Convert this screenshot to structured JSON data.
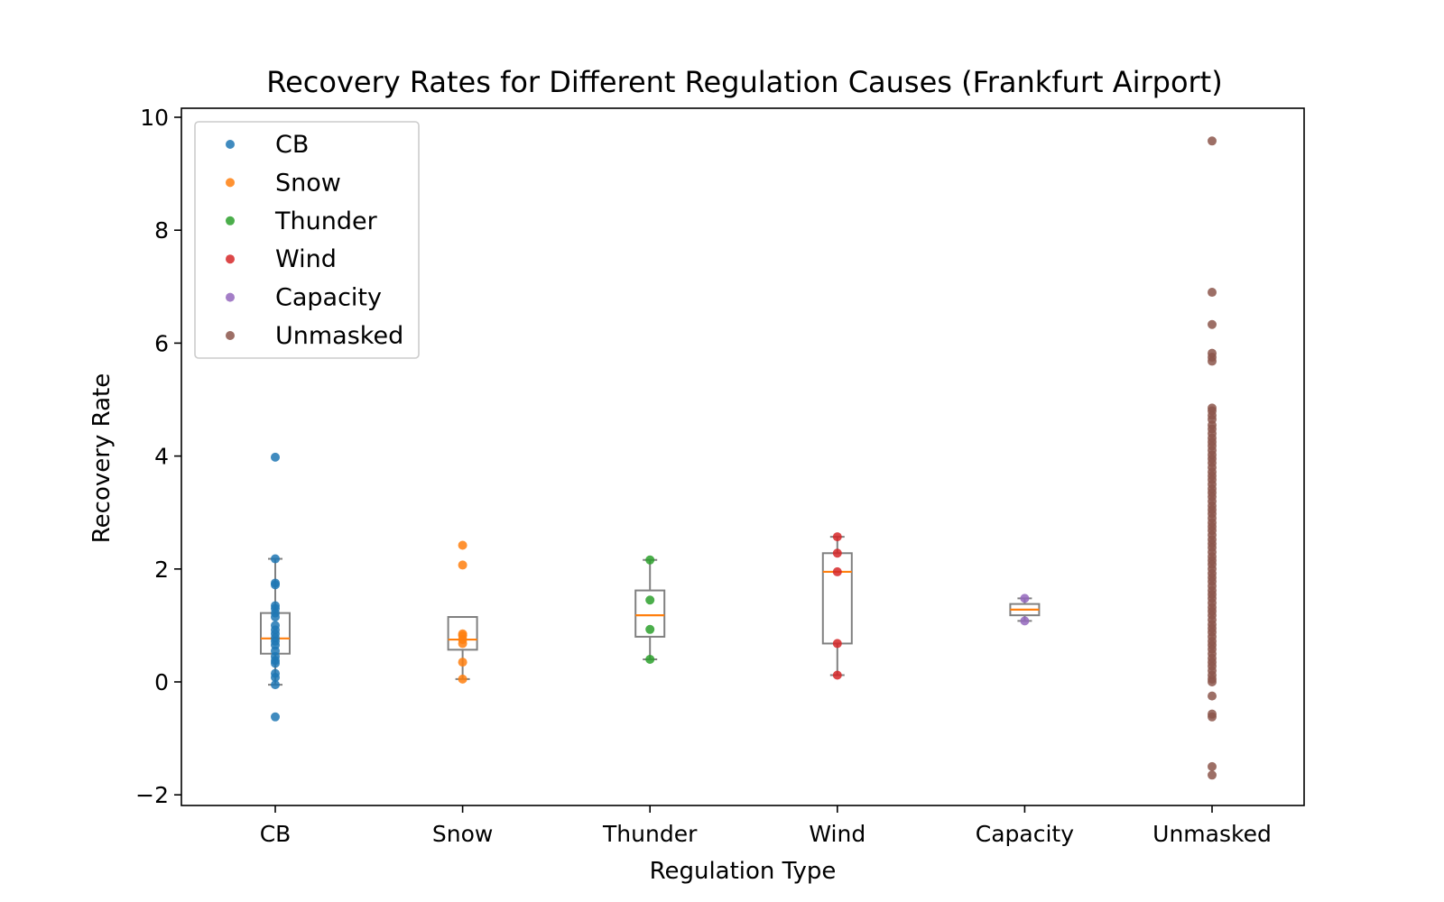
{
  "chart_data": {
    "type": "box+strip",
    "title": "Recovery Rates for Different Regulation Causes (Frankfurt Airport)",
    "xlabel": "Regulation Type",
    "ylabel": "Recovery Rate",
    "ylim": [
      -2.2,
      10.2
    ],
    "yticks": [
      -2,
      0,
      2,
      4,
      6,
      8,
      10
    ],
    "ytick_labels": [
      "−2",
      "0",
      "2",
      "4",
      "6",
      "8",
      "10"
    ],
    "categories": [
      "CB",
      "Snow",
      "Thunder",
      "Wind",
      "Capacity",
      "Unmasked"
    ],
    "legend": {
      "placement": "top-left",
      "entries": [
        "CB",
        "Snow",
        "Thunder",
        "Wind",
        "Capacity",
        "Unmasked"
      ]
    },
    "grid": false,
    "series": [
      {
        "name": "CB",
        "color": "#1f77b4",
        "box": {
          "q1": 0.5,
          "median": 0.77,
          "q3": 1.22,
          "whisker_low": -0.05,
          "whisker_high": 2.18
        },
        "points": [
          3.98,
          2.18,
          1.75,
          1.72,
          1.35,
          1.3,
          1.22,
          1.15,
          1.0,
          0.92,
          0.85,
          0.78,
          0.72,
          0.65,
          0.55,
          0.45,
          0.38,
          0.33,
          0.15,
          0.08,
          -0.05,
          -0.62
        ]
      },
      {
        "name": "Snow",
        "color": "#ff7f0e",
        "box": {
          "q1": 0.57,
          "median": 0.75,
          "q3": 1.15,
          "whisker_low": 0.05,
          "whisker_high": 1.15
        },
        "points": [
          2.42,
          2.07,
          0.85,
          0.82,
          0.75,
          0.68,
          0.35,
          0.05
        ]
      },
      {
        "name": "Thunder",
        "color": "#2ca02c",
        "box": {
          "q1": 0.8,
          "median": 1.18,
          "q3": 1.62,
          "whisker_low": 0.4,
          "whisker_high": 2.16
        },
        "points": [
          2.16,
          1.45,
          0.93,
          0.4
        ]
      },
      {
        "name": "Wind",
        "color": "#d62728",
        "box": {
          "q1": 0.68,
          "median": 1.95,
          "q3": 2.28,
          "whisker_low": 0.12,
          "whisker_high": 2.57
        },
        "points": [
          2.57,
          2.28,
          1.95,
          0.68,
          0.12
        ]
      },
      {
        "name": "Capacity",
        "color": "#9467bd",
        "box": {
          "q1": 1.18,
          "median": 1.28,
          "q3": 1.38,
          "whisker_low": 1.08,
          "whisker_high": 1.48
        },
        "points": [
          1.48,
          1.08
        ]
      },
      {
        "name": "Unmasked",
        "color": "#8c564b",
        "box": null,
        "points": [
          9.58,
          6.9,
          6.33,
          5.82,
          5.75,
          5.68,
          4.85,
          4.8,
          4.72,
          4.65,
          4.55,
          4.48,
          4.4,
          4.32,
          4.25,
          4.18,
          4.1,
          4.02,
          3.95,
          3.88,
          3.8,
          3.72,
          3.65,
          3.58,
          3.5,
          3.42,
          3.35,
          3.28,
          3.2,
          3.12,
          3.05,
          2.98,
          2.9,
          2.82,
          2.75,
          2.68,
          2.6,
          2.52,
          2.45,
          2.38,
          2.3,
          2.22,
          2.15,
          2.08,
          2.0,
          1.92,
          1.85,
          1.78,
          1.7,
          1.62,
          1.55,
          1.48,
          1.4,
          1.32,
          1.25,
          1.18,
          1.1,
          1.02,
          0.95,
          0.88,
          0.8,
          0.72,
          0.65,
          0.58,
          0.5,
          0.42,
          0.35,
          0.28,
          0.2,
          0.12,
          0.05,
          0.0,
          -0.25,
          -0.57,
          -0.62,
          -1.5,
          -1.65
        ]
      }
    ]
  }
}
